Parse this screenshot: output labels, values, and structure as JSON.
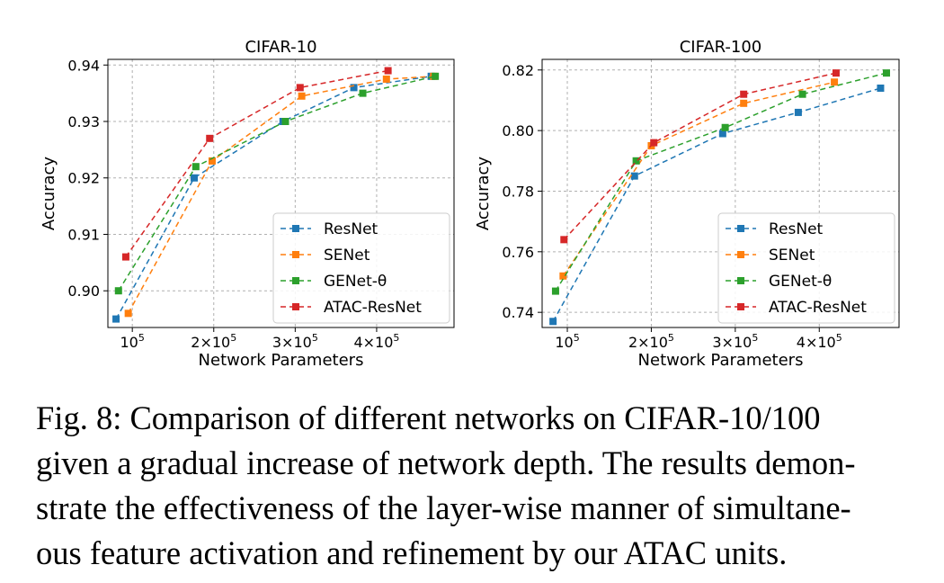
{
  "chart_data": [
    {
      "type": "line",
      "title": "CIFAR-10",
      "xlabel": "Network Parameters",
      "ylabel": "Accuracy",
      "xlim": [
        70000,
        495000
      ],
      "ylim": [
        0.8935,
        0.941
      ],
      "xticks": [
        {
          "value": 100000,
          "label": "10^5"
        },
        {
          "value": 200000,
          "label": "2×10^5"
        },
        {
          "value": 300000,
          "label": "3×10^5"
        },
        {
          "value": 400000,
          "label": "4×10^5"
        }
      ],
      "yticks": [
        {
          "value": 0.9,
          "label": "0.90"
        },
        {
          "value": 0.91,
          "label": "0.91"
        },
        {
          "value": 0.92,
          "label": "0.92"
        },
        {
          "value": 0.93,
          "label": "0.93"
        },
        {
          "value": 0.94,
          "label": "0.94"
        }
      ],
      "grid": true,
      "legend_position": "lower-right",
      "series": [
        {
          "name": "ResNet",
          "color": "#1f77b4",
          "x": [
            80000,
            176000,
            285000,
            372000,
            467000
          ],
          "y": [
            0.895,
            0.92,
            0.93,
            0.936,
            0.938
          ]
        },
        {
          "name": "SENet",
          "color": "#ff7f0e",
          "x": [
            95000,
            198000,
            308000,
            412000,
            470000
          ],
          "y": [
            0.896,
            0.923,
            0.9345,
            0.9375,
            0.938
          ]
        },
        {
          "name": "GENet-θ",
          "color": "#2ca02c",
          "x": [
            83000,
            178000,
            288000,
            383000,
            472000
          ],
          "y": [
            0.9,
            0.922,
            0.93,
            0.935,
            0.938
          ]
        },
        {
          "name": "ATAC-ResNet",
          "color": "#d62728",
          "x": [
            92000,
            195000,
            306000,
            414000
          ],
          "y": [
            0.906,
            0.927,
            0.936,
            0.939
          ]
        }
      ]
    },
    {
      "type": "line",
      "title": "CIFAR-100",
      "xlabel": "Network Parameters",
      "ylabel": "Accuracy",
      "xlim": [
        70000,
        495000
      ],
      "ylim": [
        0.735,
        0.8235
      ],
      "xticks": [
        {
          "value": 100000,
          "label": "10^5"
        },
        {
          "value": 200000,
          "label": "2×10^5"
        },
        {
          "value": 300000,
          "label": "3×10^5"
        },
        {
          "value": 400000,
          "label": "4×10^5"
        }
      ],
      "yticks": [
        {
          "value": 0.74,
          "label": "0.74"
        },
        {
          "value": 0.76,
          "label": "0.76"
        },
        {
          "value": 0.78,
          "label": "0.78"
        },
        {
          "value": 0.8,
          "label": "0.80"
        },
        {
          "value": 0.82,
          "label": "0.82"
        }
      ],
      "grid": true,
      "legend_position": "lower-right",
      "series": [
        {
          "name": "ResNet",
          "color": "#1f77b4",
          "x": [
            83000,
            180000,
            285000,
            375000,
            473000
          ],
          "y": [
            0.737,
            0.785,
            0.799,
            0.806,
            0.814
          ]
        },
        {
          "name": "SENet",
          "color": "#ff7f0e",
          "x": [
            95000,
            200000,
            310000,
            418000
          ],
          "y": [
            0.752,
            0.795,
            0.809,
            0.816
          ]
        },
        {
          "name": "GENet-θ",
          "color": "#2ca02c",
          "x": [
            86000,
            182000,
            288000,
            380000,
            480000
          ],
          "y": [
            0.747,
            0.79,
            0.801,
            0.812,
            0.819
          ]
        },
        {
          "name": "ATAC-ResNet",
          "color": "#d62728",
          "x": [
            96000,
            203000,
            310000,
            420000
          ],
          "y": [
            0.764,
            0.796,
            0.812,
            0.819
          ]
        }
      ]
    }
  ],
  "caption": {
    "lines": [
      "Fig. 8: Comparison of different networks on CIFAR-10/100",
      "given a gradual increase of network depth. The results demon-",
      "strate the effectiveness of the layer-wise manner of simultane-",
      "ous feature activation and refinement by our ATAC units."
    ]
  }
}
